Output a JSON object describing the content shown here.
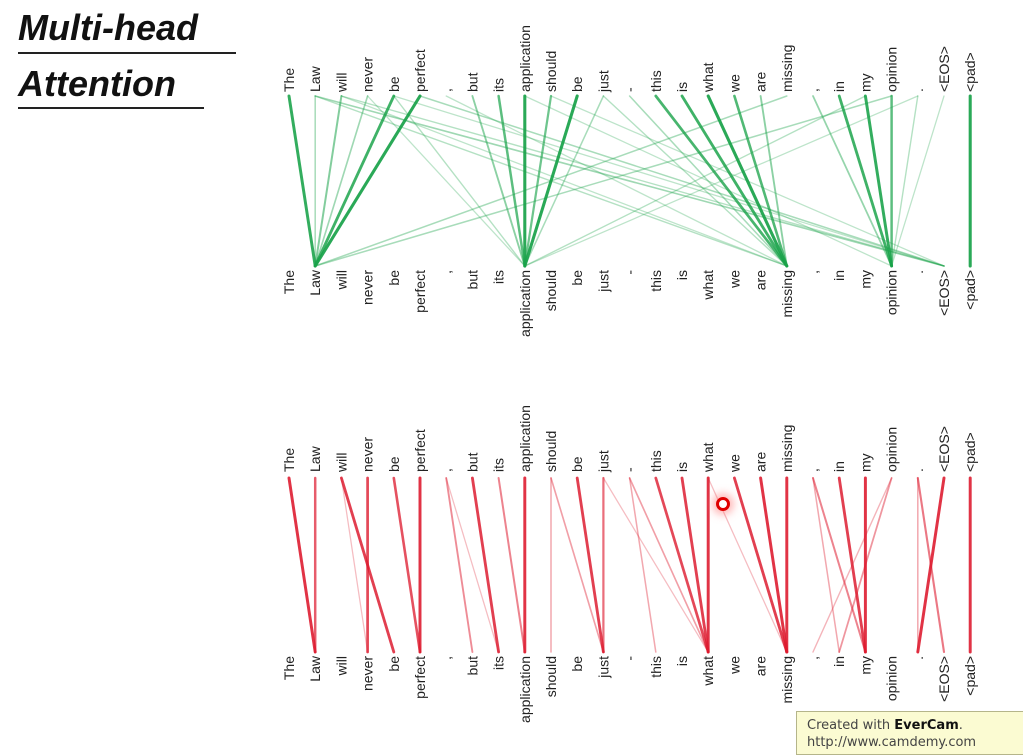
{
  "title": {
    "line1": "Multi-head",
    "line2": "Attention"
  },
  "tokens": [
    "The",
    "Law",
    "will",
    "never",
    "be",
    "perfect",
    ",",
    "but",
    "its",
    "application",
    "should",
    "be",
    "just",
    "-",
    "this",
    "is",
    "what",
    "we",
    "are",
    "missing",
    ",",
    "in",
    "my",
    "opinion",
    ".",
    "<EOS>",
    "<pad>"
  ],
  "colors": {
    "head1": "#1aa34a",
    "head2": "#dd1a2e",
    "text": "#222222"
  },
  "head1_attention": [
    [
      0,
      1,
      0.9
    ],
    [
      1,
      1,
      0.3
    ],
    [
      2,
      1,
      0.5
    ],
    [
      3,
      1,
      0.35
    ],
    [
      4,
      1,
      0.85
    ],
    [
      5,
      1,
      0.95
    ],
    [
      1,
      19,
      0.25
    ],
    [
      2,
      19,
      0.2
    ],
    [
      6,
      19,
      0.2
    ],
    [
      7,
      9,
      0.45
    ],
    [
      8,
      9,
      0.7
    ],
    [
      9,
      9,
      0.95
    ],
    [
      10,
      9,
      0.6
    ],
    [
      11,
      9,
      0.95
    ],
    [
      12,
      9,
      0.3
    ],
    [
      3,
      9,
      0.2
    ],
    [
      4,
      9,
      0.25
    ],
    [
      12,
      19,
      0.25
    ],
    [
      14,
      19,
      0.8
    ],
    [
      15,
      19,
      0.85
    ],
    [
      16,
      19,
      0.95
    ],
    [
      17,
      19,
      0.75
    ],
    [
      18,
      19,
      0.45
    ],
    [
      13,
      19,
      0.3
    ],
    [
      19,
      1,
      0.3
    ],
    [
      22,
      9,
      0.25
    ],
    [
      23,
      1,
      0.3
    ],
    [
      24,
      9,
      0.2
    ],
    [
      20,
      23,
      0.4
    ],
    [
      21,
      23,
      0.85
    ],
    [
      22,
      23,
      0.9
    ],
    [
      23,
      23,
      0.7
    ],
    [
      24,
      23,
      0.25
    ],
    [
      25,
      23,
      0.2
    ],
    [
      1,
      25,
      0.35
    ],
    [
      2,
      25,
      0.25
    ],
    [
      4,
      25,
      0.2
    ],
    [
      5,
      25,
      0.3
    ],
    [
      9,
      23,
      0.2
    ],
    [
      10,
      25,
      0.2
    ],
    [
      26,
      26,
      0.95
    ]
  ],
  "head2_attention": [
    [
      0,
      1,
      0.9
    ],
    [
      1,
      1,
      0.7
    ],
    [
      2,
      4,
      0.85
    ],
    [
      3,
      3,
      0.8
    ],
    [
      4,
      5,
      0.75
    ],
    [
      5,
      5,
      0.9
    ],
    [
      7,
      8,
      0.85
    ],
    [
      8,
      9,
      0.5
    ],
    [
      9,
      9,
      0.9
    ],
    [
      10,
      12,
      0.35
    ],
    [
      10,
      10,
      0.3
    ],
    [
      11,
      12,
      0.85
    ],
    [
      12,
      12,
      0.6
    ],
    [
      6,
      7,
      0.45
    ],
    [
      2,
      3,
      0.2
    ],
    [
      6,
      8,
      0.2
    ],
    [
      13,
      16,
      0.35
    ],
    [
      14,
      16,
      0.8
    ],
    [
      15,
      16,
      0.85
    ],
    [
      16,
      16,
      0.9
    ],
    [
      13,
      14,
      0.3
    ],
    [
      12,
      16,
      0.2
    ],
    [
      17,
      19,
      0.85
    ],
    [
      18,
      19,
      0.9
    ],
    [
      19,
      19,
      0.9
    ],
    [
      16,
      19,
      0.2
    ],
    [
      20,
      22,
      0.5
    ],
    [
      21,
      22,
      0.85
    ],
    [
      22,
      22,
      0.9
    ],
    [
      23,
      21,
      0.4
    ],
    [
      20,
      21,
      0.3
    ],
    [
      23,
      20,
      0.25
    ],
    [
      24,
      25,
      0.55
    ],
    [
      25,
      24,
      0.9
    ],
    [
      26,
      26,
      0.9
    ],
    [
      24,
      24,
      0.3
    ]
  ],
  "watermark": {
    "created_prefix": "Created with ",
    "brand": "EverCam",
    "created_suffix": ".",
    "url": "http://www.camdemy.com"
  }
}
